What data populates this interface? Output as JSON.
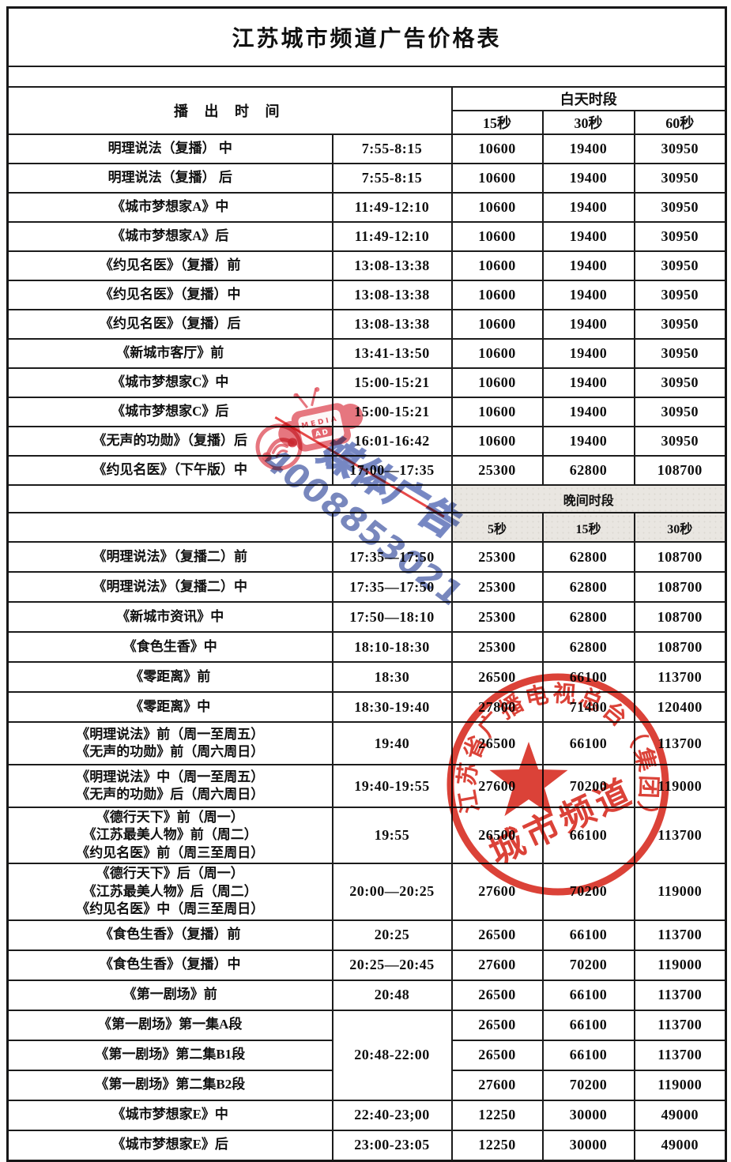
{
  "title": "江苏城市频道广告价格表",
  "header": {
    "broadcast_time_label": "播 出 时 间",
    "daytime": {
      "label": "白天时段",
      "durations": [
        "15秒",
        "30秒",
        "60秒"
      ]
    },
    "evening": {
      "label": "晚间时段",
      "durations": [
        "5秒",
        "15秒",
        "30秒"
      ]
    }
  },
  "day_rows": [
    {
      "program": "明理说法（复播） 中",
      "time": "7:55-8:15",
      "prices": [
        "10600",
        "19400",
        "30950"
      ]
    },
    {
      "program": "明理说法（复播） 后",
      "time": "7:55-8:15",
      "prices": [
        "10600",
        "19400",
        "30950"
      ]
    },
    {
      "program": "《城市梦想家A》中",
      "time": "11:49-12:10",
      "prices": [
        "10600",
        "19400",
        "30950"
      ]
    },
    {
      "program": "《城市梦想家A》后",
      "time": "11:49-12:10",
      "prices": [
        "10600",
        "19400",
        "30950"
      ]
    },
    {
      "program": "《约见名医》（复播）前",
      "time": "13:08-13:38",
      "prices": [
        "10600",
        "19400",
        "30950"
      ]
    },
    {
      "program": "《约见名医》（复播）中",
      "time": "13:08-13:38",
      "prices": [
        "10600",
        "19400",
        "30950"
      ]
    },
    {
      "program": "《约见名医》（复播）后",
      "time": "13:08-13:38",
      "prices": [
        "10600",
        "19400",
        "30950"
      ]
    },
    {
      "program": "《新城市客厅》前",
      "time": "13:41-13:50",
      "prices": [
        "10600",
        "19400",
        "30950"
      ]
    },
    {
      "program": "《城市梦想家C》中",
      "time": "15:00-15:21",
      "prices": [
        "10600",
        "19400",
        "30950"
      ]
    },
    {
      "program": "《城市梦想家C》后",
      "time": "15:00-15:21",
      "prices": [
        "10600",
        "19400",
        "30950"
      ]
    },
    {
      "program": "《无声的功勋》（复播）后",
      "time": "16:01-16:42",
      "prices": [
        "10600",
        "19400",
        "30950"
      ]
    },
    {
      "program": "《约见名医》（下午版）中",
      "time": "17:00—17:35",
      "prices": [
        "25300",
        "62800",
        "108700"
      ]
    }
  ],
  "evening_rows": [
    {
      "program": "《明理说法》（复播二）前",
      "time": "17:35—17:50",
      "prices": [
        "25300",
        "62800",
        "108700"
      ]
    },
    {
      "program": "《明理说法》（复播二）中",
      "time": "17:35—17:50",
      "prices": [
        "25300",
        "62800",
        "108700"
      ]
    },
    {
      "program": "《新城市资讯》中",
      "time": "17:50—18:10",
      "prices": [
        "25300",
        "62800",
        "108700"
      ]
    },
    {
      "program": "《食色生香》中",
      "time": "18:10-18:30",
      "prices": [
        "25300",
        "62800",
        "108700"
      ]
    },
    {
      "program": "《零距离》前",
      "time": "18:30",
      "prices": [
        "26500",
        "66100",
        "113700"
      ]
    },
    {
      "program": "《零距离》中",
      "time": "18:30-19:40",
      "prices": [
        "27800",
        "71400",
        "120400"
      ]
    },
    {
      "program_lines": [
        "《明理说法》前（周一至周五）",
        "《无声的功勋》前（周六周日）"
      ],
      "time": "19:40",
      "prices": [
        "26500",
        "66100",
        "113700"
      ]
    },
    {
      "program_lines": [
        "《明理说法》中（周一至周五）",
        "《无声的功勋》后（周六周日）"
      ],
      "time": "19:40-19:55",
      "prices": [
        "27600",
        "70200",
        "119000"
      ]
    },
    {
      "program_lines": [
        "《德行天下》前（周一）",
        "《江苏最美人物》前（周二）",
        "《约见名医》前（周三至周日）"
      ],
      "time": "19:55",
      "prices": [
        "26500",
        "66100",
        "113700"
      ]
    },
    {
      "program_lines": [
        "《德行天下》后（周一）",
        "《江苏最美人物》后（周二）",
        "《约见名医》中（周三至周日）"
      ],
      "time": "20:00—20:25",
      "prices": [
        "27600",
        "70200",
        "119000"
      ]
    },
    {
      "program": "《食色生香》（复播）前",
      "time": "20:25",
      "prices": [
        "26500",
        "66100",
        "113700"
      ]
    },
    {
      "program": "《食色生香》（复播）中",
      "time": "20:25—20:45",
      "prices": [
        "27600",
        "70200",
        "119000"
      ]
    },
    {
      "program": "《第一剧场》前",
      "time": "20:48",
      "prices": [
        "26500",
        "66100",
        "113700"
      ]
    },
    {
      "program": "《第一剧场》第一集A段",
      "time": "20:48-22:00",
      "time_rowspan": 3,
      "prices": [
        "26500",
        "66100",
        "113700"
      ]
    },
    {
      "program": "《第一剧场》第二集B1段",
      "time_merged": true,
      "prices": [
        "26500",
        "66100",
        "113700"
      ]
    },
    {
      "program": "《第一剧场》第二集B2段",
      "time_merged": true,
      "prices": [
        "27600",
        "70200",
        "119000"
      ]
    },
    {
      "program": "《城市梦想家E》中",
      "time": "22:40-23;00",
      "prices": [
        "12250",
        "30000",
        "49000"
      ]
    },
    {
      "program": "《城市梦想家E》后",
      "time": "23:00-23:05",
      "prices": [
        "12250",
        "30000",
        "49000"
      ]
    }
  ],
  "stamp": {
    "arc_text": "江苏省广播电视总台（集团）",
    "channel_text": "城市频道",
    "color": "#d6281c"
  },
  "watermark": {
    "logo_line1": "MEDIA",
    "logo_line2": "AD",
    "phone": "4008853021",
    "slogan": "媒体广告",
    "blue": "#5a6caf",
    "pink": "#e0545f",
    "line_red": "#e43030"
  }
}
